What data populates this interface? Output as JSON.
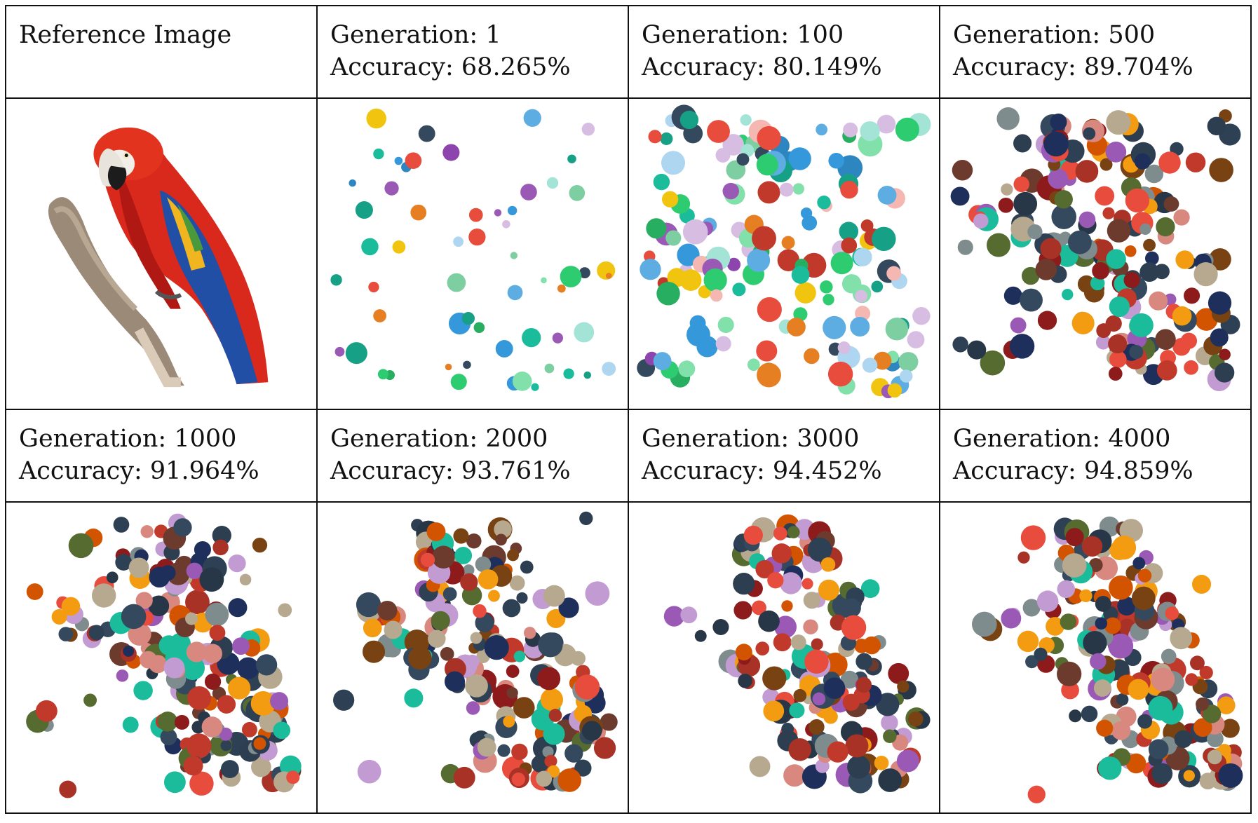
{
  "cells": [
    {
      "title": "Reference Image"
    },
    {
      "title": "Generation: 1",
      "subtitle": "Accuracy: 68.265%"
    },
    {
      "title": "Generation: 100",
      "subtitle": "Accuracy: 80.149%"
    },
    {
      "title": "Generation: 500",
      "subtitle": "Accuracy: 89.704%"
    },
    {
      "title": "Generation: 1000",
      "subtitle": "Accuracy: 91.964%"
    },
    {
      "title": "Generation: 2000",
      "subtitle": "Accuracy: 93.761%"
    },
    {
      "title": "Generation: 3000",
      "subtitle": "Accuracy: 94.452%"
    },
    {
      "title": "Generation: 4000",
      "subtitle": "Accuracy: 94.859%"
    }
  ],
  "images": [
    {
      "subject": "parrot-photo"
    },
    {
      "subject": "circles",
      "density": 0.06
    },
    {
      "subject": "circles",
      "density": 0.45
    },
    {
      "subject": "circles",
      "density": 0.8
    },
    {
      "subject": "circles",
      "density": 0.9
    },
    {
      "subject": "circles",
      "density": 0.95
    },
    {
      "subject": "circles",
      "density": 0.97
    },
    {
      "subject": "circles",
      "density": 0.98
    }
  ]
}
